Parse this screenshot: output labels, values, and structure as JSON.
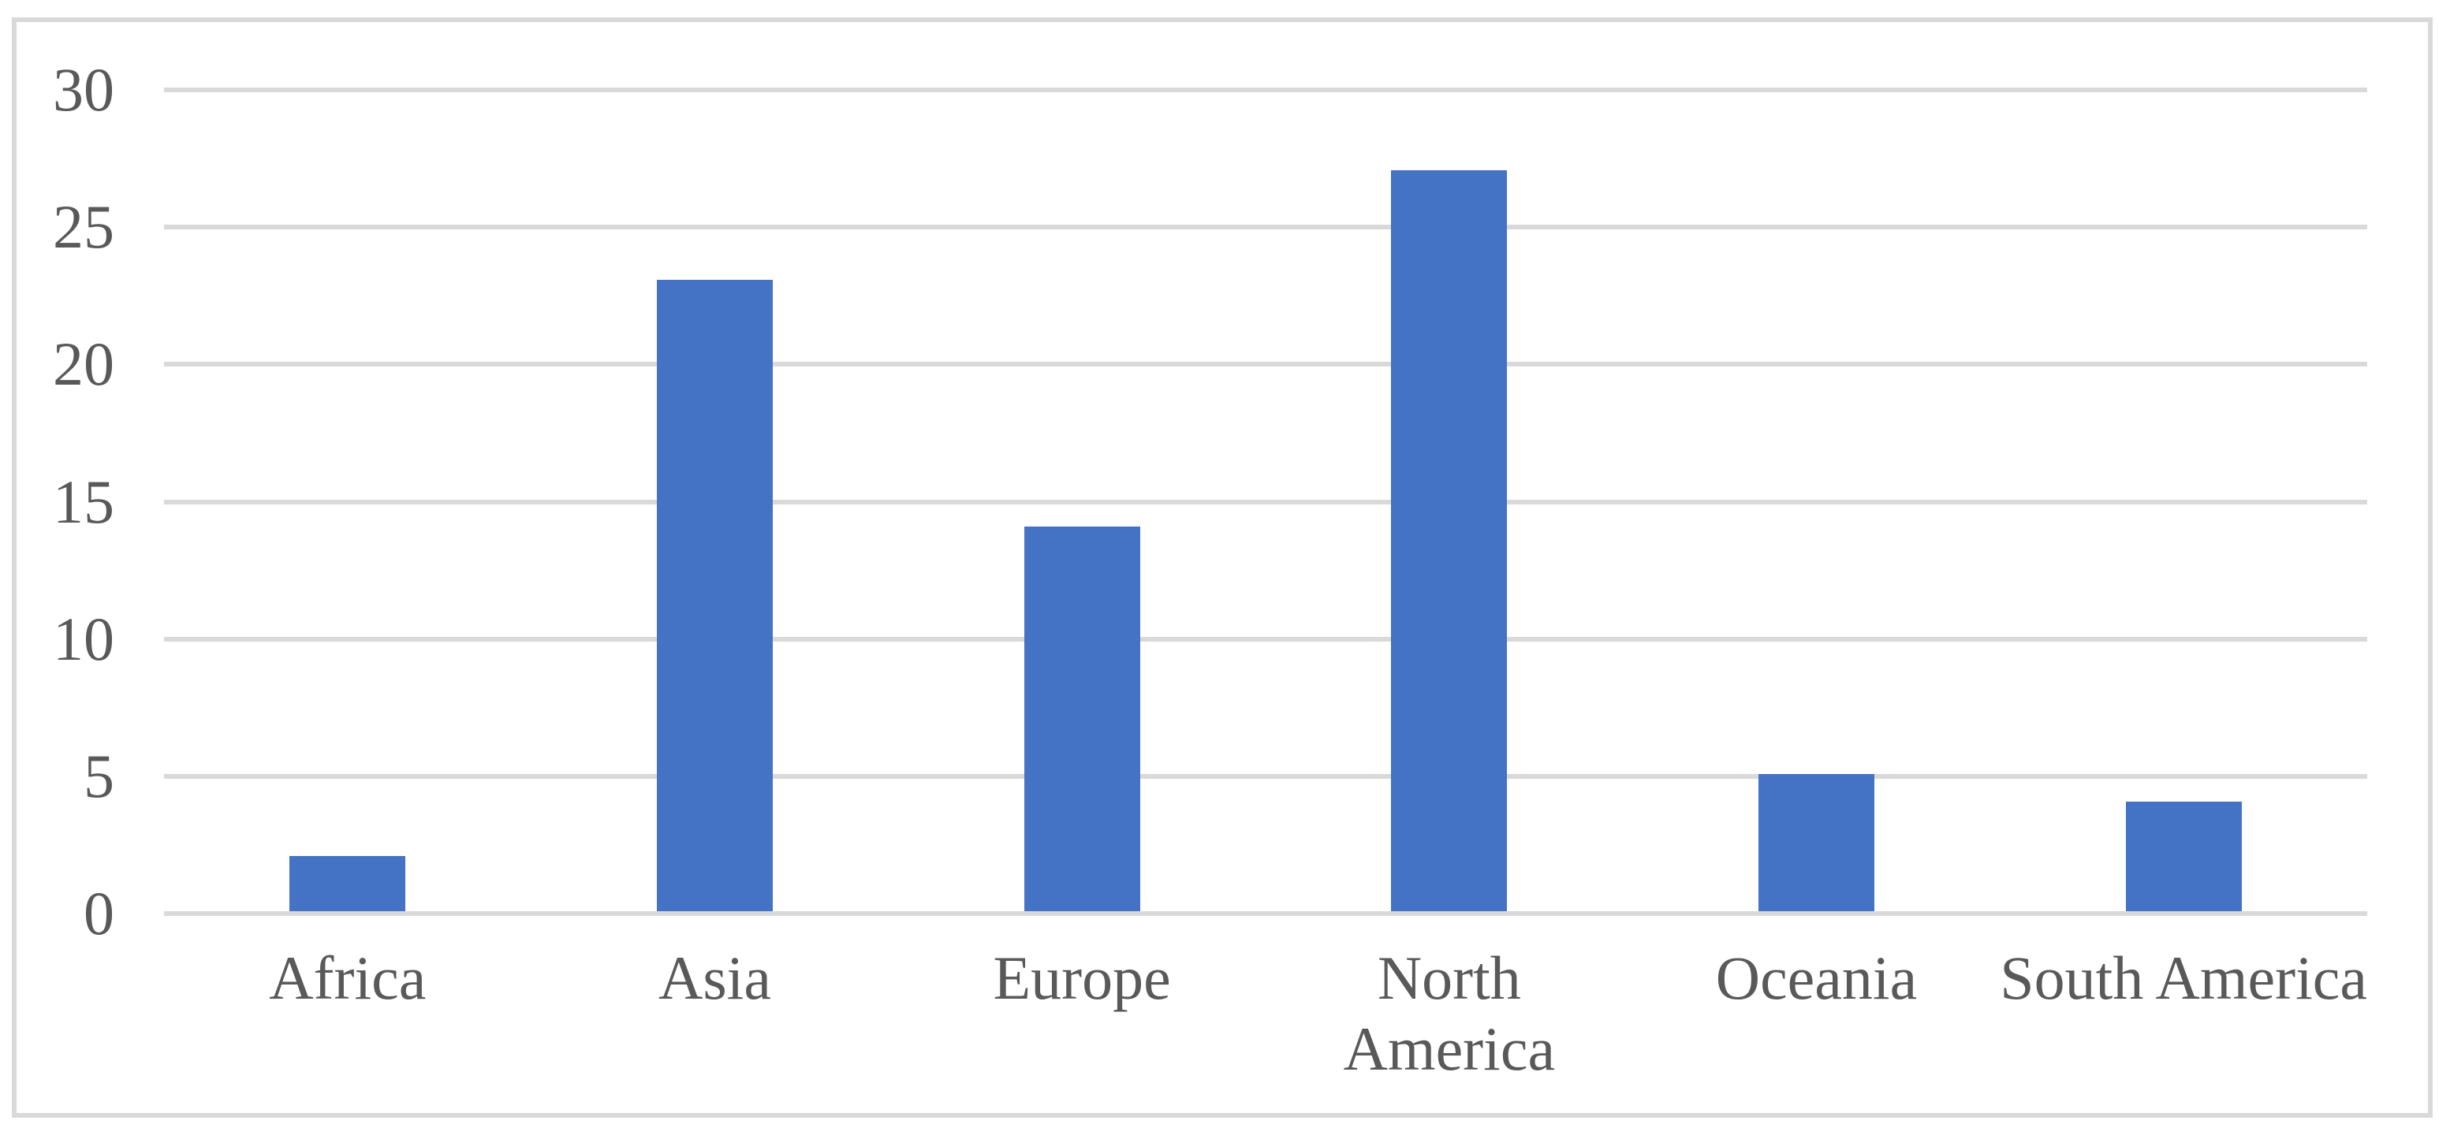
{
  "colors": {
    "bar": "#4472C4",
    "gridline": "#D9D9D9",
    "frame_border": "#D9D9D9",
    "axis_label": "#595959",
    "background": "#FFFFFF"
  },
  "chart_data": {
    "type": "bar",
    "title": "",
    "xlabel": "",
    "ylabel": "",
    "categories": [
      "Africa",
      "Asia",
      "Europe",
      "North America",
      "Oceania",
      "South America"
    ],
    "category_label_lines": [
      [
        "Africa"
      ],
      [
        "Asia"
      ],
      [
        "Europe"
      ],
      [
        "North",
        "America"
      ],
      [
        "Oceania"
      ],
      [
        "South America"
      ]
    ],
    "values": [
      2,
      23,
      14,
      27,
      5,
      4
    ],
    "series": [
      {
        "name": "",
        "values": [
          2,
          23,
          14,
          27,
          5,
          4
        ]
      }
    ],
    "ylim": [
      0,
      30
    ],
    "yticks": [
      0,
      5,
      10,
      15,
      20,
      25,
      30
    ],
    "ytick_labels": [
      "0",
      "5",
      "10",
      "15",
      "20",
      "25",
      "30"
    ],
    "grid": true,
    "legend": false,
    "legend_position": "none"
  }
}
